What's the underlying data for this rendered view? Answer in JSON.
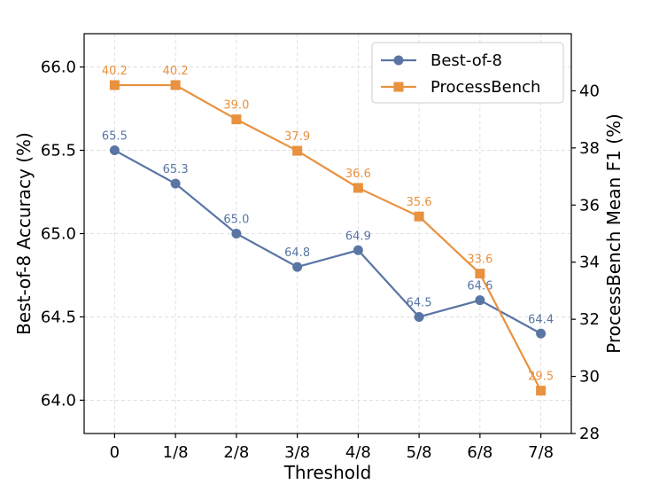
{
  "chart_data": {
    "type": "line",
    "x_axis": {
      "label": "Threshold",
      "categories": [
        "0",
        "1/8",
        "2/8",
        "3/8",
        "4/8",
        "5/8",
        "6/8",
        "7/8"
      ]
    },
    "y_left": {
      "label": "Best-of-8 Accuracy (%)",
      "lim": [
        63.8,
        66.2
      ],
      "ticks": [
        64.0,
        64.5,
        65.0,
        65.5,
        66.0
      ],
      "tick_labels": [
        "64.0",
        "64.5",
        "65.0",
        "65.5",
        "66.0"
      ]
    },
    "y_right": {
      "label": "ProcessBench Mean F1 (%)",
      "lim": [
        28,
        42
      ],
      "ticks": [
        28,
        30,
        32,
        34,
        36,
        38,
        40
      ],
      "tick_labels": [
        "28",
        "30",
        "32",
        "34",
        "36",
        "38",
        "40"
      ]
    },
    "grid": true,
    "legend_position": "top-right",
    "series": [
      {
        "name": "Best-of-8",
        "axis": "left",
        "marker": "circle",
        "color": "#5875a4",
        "values": [
          65.5,
          65.3,
          65.0,
          64.8,
          64.9,
          64.5,
          64.6,
          64.4
        ],
        "labels": [
          "65.5",
          "65.3",
          "65.0",
          "64.8",
          "64.9",
          "64.5",
          "64.6",
          "64.4"
        ]
      },
      {
        "name": "ProcessBench",
        "axis": "right",
        "marker": "square",
        "color": "#e8913f",
        "values": [
          40.2,
          40.2,
          39.0,
          37.9,
          36.6,
          35.6,
          33.6,
          29.5
        ],
        "labels": [
          "40.2",
          "40.2",
          "39.0",
          "37.9",
          "36.6",
          "35.6",
          "33.6",
          "29.5"
        ]
      }
    ]
  }
}
